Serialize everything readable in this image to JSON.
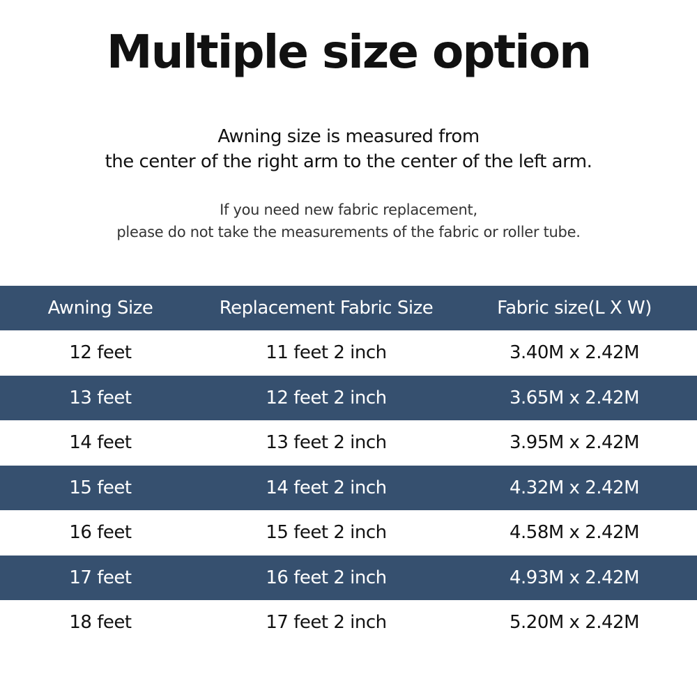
{
  "title": "Multiple size option",
  "subtitle_lines": [
    "Awning  size is measured from",
    "the center of the right arm to the center of the left arm."
  ],
  "note_lines": [
    "If you need new fabric replacement,",
    "please do not take the measurements of the fabric or roller tube."
  ],
  "table": {
    "headers": [
      "Awning Size",
      "Replacement Fabric Size",
      "Fabric size(L X W)"
    ],
    "rows": [
      [
        "12 feet",
        "11 feet 2 inch",
        "3.40M x 2.42M"
      ],
      [
        "13 feet",
        "12 feet 2 inch",
        "3.65M x 2.42M"
      ],
      [
        "14 feet",
        "13 feet 2 inch",
        "3.95M x 2.42M"
      ],
      [
        "15 feet",
        "14 feet 2 inch",
        "4.32M x 2.42M"
      ],
      [
        "16 feet",
        "15 feet 2 inch",
        "4.58M x 2.42M"
      ],
      [
        "17 feet",
        "16 feet 2 inch",
        "4.93M x 2.42M"
      ],
      [
        "18 feet",
        "17 feet 2 inch",
        "5.20M x 2.42M"
      ]
    ]
  },
  "colors": {
    "header_band": "#36506f",
    "text": "#111111"
  }
}
